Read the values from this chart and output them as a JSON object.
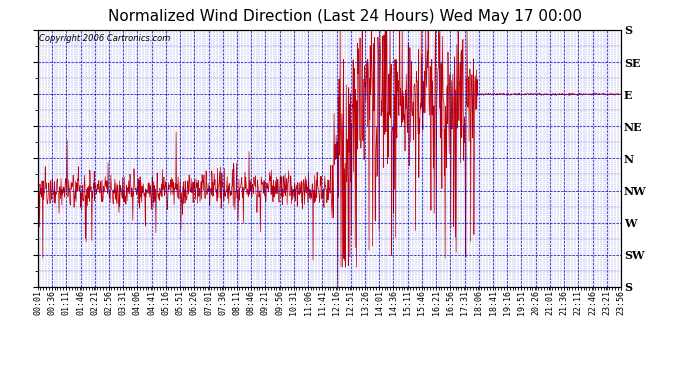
{
  "title": "Normalized Wind Direction (Last 24 Hours) Wed May 17 00:00",
  "copyright": "Copyright 2006 Cartronics.com",
  "bg_color": "#ffffff",
  "plot_bg_color": "#ffffff",
  "grid_color": "#0000cc",
  "line_color": "#cc0000",
  "border_color": "#000000",
  "ytick_labels": [
    "S",
    "SE",
    "E",
    "NE",
    "N",
    "NW",
    "W",
    "SW",
    "S"
  ],
  "ytick_values": [
    360,
    315,
    270,
    225,
    180,
    135,
    90,
    45,
    0
  ],
  "ymin": 0,
  "ymax": 360,
  "title_fontsize": 11,
  "copyright_fontsize": 6,
  "tick_fontsize": 6,
  "ytick_fontsize": 8,
  "figwidth": 6.9,
  "figheight": 3.75,
  "dpi": 100
}
